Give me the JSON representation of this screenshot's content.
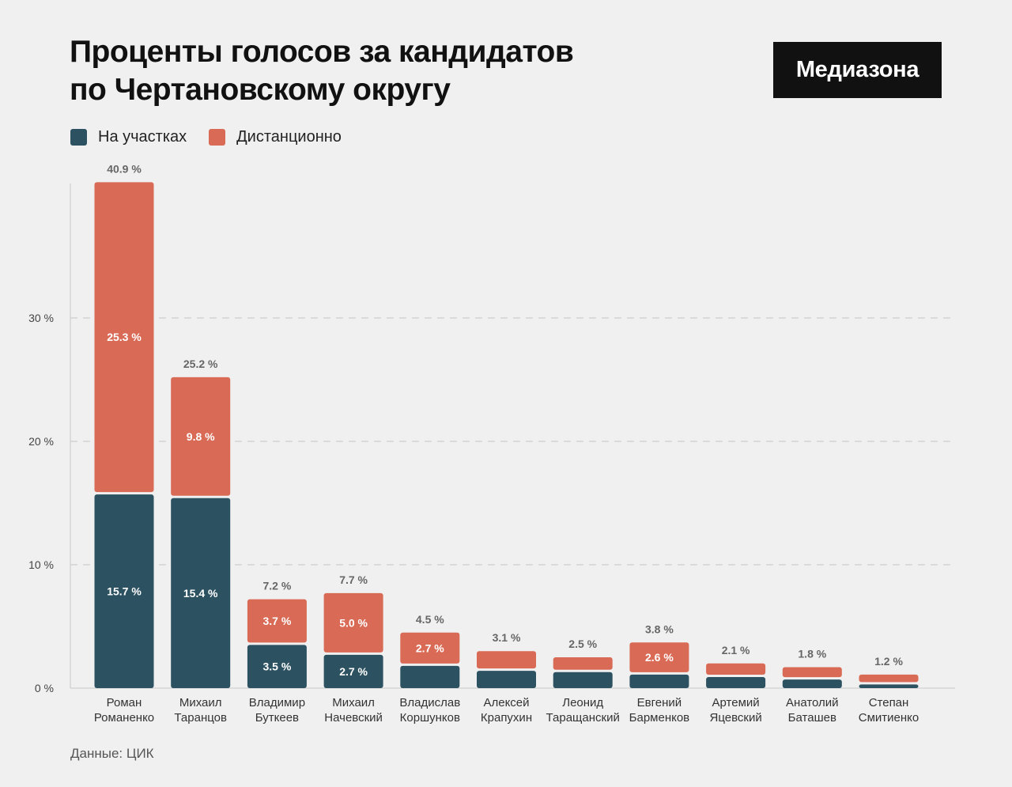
{
  "header": {
    "title_line1": "Проценты голосов за кандидатов",
    "title_line2": "по Чертановскому округу",
    "brand": "Медиазона"
  },
  "footer": {
    "source": "Данные: ЦИК"
  },
  "colors": {
    "onsite": "#2c5262",
    "remote": "#d96a55"
  },
  "chart_data": {
    "type": "bar",
    "stacked": true,
    "title": "Проценты голосов за кандидатов по Чертановскому округу",
    "ylim": [
      0,
      41
    ],
    "yticks": [
      0,
      10,
      20,
      30
    ],
    "ytick_labels": [
      "0 %",
      "10 %",
      "20 %",
      "30 %"
    ],
    "grid": true,
    "legend_position": "top-left",
    "categories": [
      [
        "Роман",
        "Романенко"
      ],
      [
        "Михаил",
        "Таранцов"
      ],
      [
        "Владимир",
        "Буткеев"
      ],
      [
        "Михаил",
        "Начевский"
      ],
      [
        "Владислав",
        "Коршунков"
      ],
      [
        "Алексей",
        "Крапухин"
      ],
      [
        "Леонид",
        "Таращанский"
      ],
      [
        "Евгений",
        "Барменков"
      ],
      [
        "Артемий",
        "Яцевский"
      ],
      [
        "Анатолий",
        "Баташев"
      ],
      [
        "Степан",
        "Смитиенко"
      ]
    ],
    "totals": [
      40.9,
      25.2,
      7.2,
      7.7,
      4.5,
      3.1,
      2.5,
      3.8,
      2.1,
      1.8,
      1.2
    ],
    "total_labels": [
      "40.9 %",
      "25.2 %",
      "7.2 %",
      "7.7 %",
      "4.5 %",
      "3.1 %",
      "2.5 %",
      "3.8 %",
      "2.1 %",
      "1.8 %",
      "1.2 %"
    ],
    "series": [
      {
        "name": "На участках",
        "values": [
          15.7,
          15.4,
          3.5,
          2.7,
          1.8,
          1.4,
          1.3,
          1.1,
          0.9,
          0.7,
          0.3
        ],
        "labels": [
          "15.7 %",
          "15.4 %",
          "3.5 %",
          "2.7 %",
          "",
          "",
          "",
          "",
          "",
          "",
          ""
        ]
      },
      {
        "name": "Дистанционно",
        "values": [
          25.3,
          9.8,
          3.7,
          5.0,
          2.7,
          1.6,
          1.2,
          2.6,
          1.1,
          1.0,
          0.8
        ],
        "labels": [
          "25.3 %",
          "9.8 %",
          "3.7 %",
          "5.0 %",
          "2.7 %",
          "",
          "",
          "2.6 %",
          "",
          "",
          ""
        ]
      }
    ]
  }
}
